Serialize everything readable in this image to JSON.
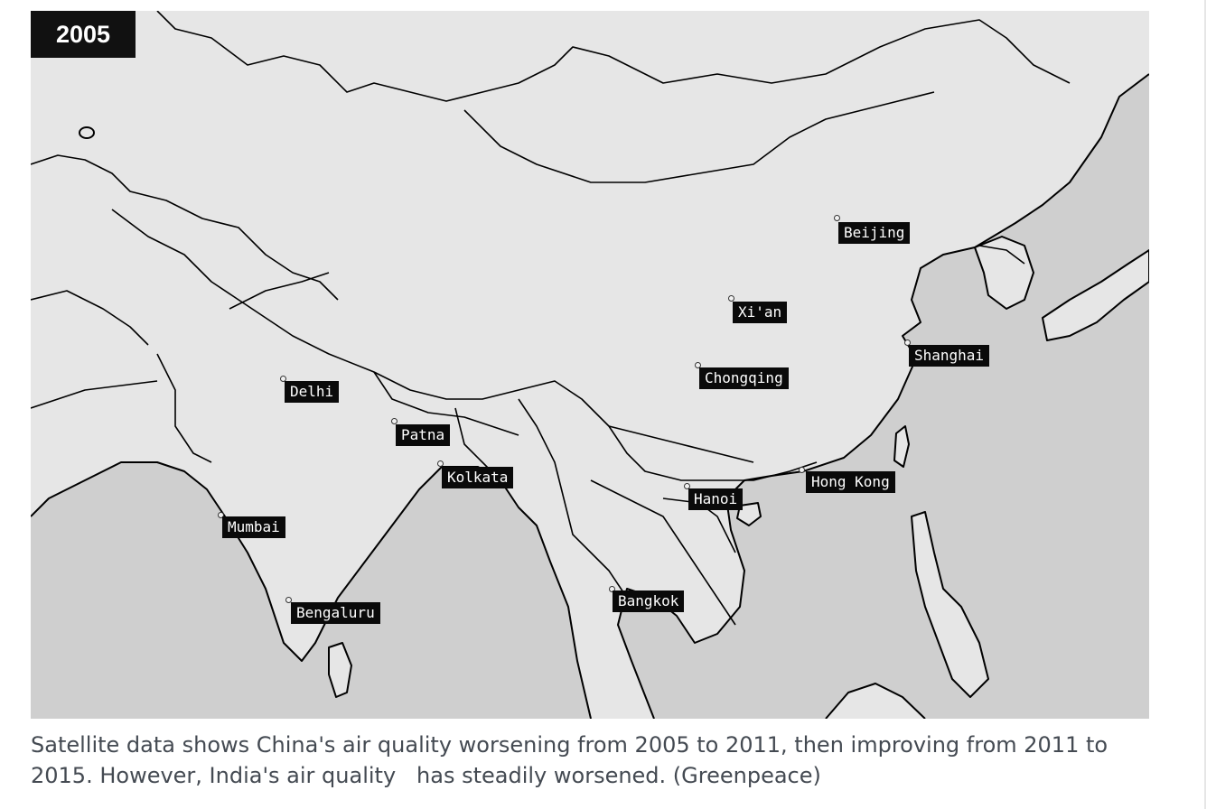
{
  "map": {
    "year_label": "2005",
    "cities": [
      {
        "id": "beijing",
        "name": "Beijing"
      },
      {
        "id": "xian",
        "name": "Xi'an"
      },
      {
        "id": "shanghai",
        "name": "Shanghai"
      },
      {
        "id": "chongqing",
        "name": "Chongqing"
      },
      {
        "id": "delhi",
        "name": "Delhi"
      },
      {
        "id": "patna",
        "name": "Patna"
      },
      {
        "id": "kolkata",
        "name": "Kolkata"
      },
      {
        "id": "hanoi",
        "name": "Hanoi"
      },
      {
        "id": "hong-kong",
        "name": "Hong Kong"
      },
      {
        "id": "mumbai",
        "name": "Mumbai"
      },
      {
        "id": "bengaluru",
        "name": "Bengaluru"
      },
      {
        "id": "bangkok",
        "name": "Bangkok"
      }
    ],
    "colors": {
      "ocean": "#cfcfcf",
      "clean_land": "#ffffff",
      "low_pollution": "#ffff00",
      "medium_pollution": "#ff9900",
      "high_pollution": "#e31a00",
      "very_high_pollution": "#4a0000",
      "extreme_pollution": "#000000",
      "border": "#000000"
    }
  },
  "caption": "Satellite data shows China's air quality worsening from 2005 to 2011, then improving from 2011 to\n2015. However, India's air quality   has steadily worsened. (Greenpeace)"
}
